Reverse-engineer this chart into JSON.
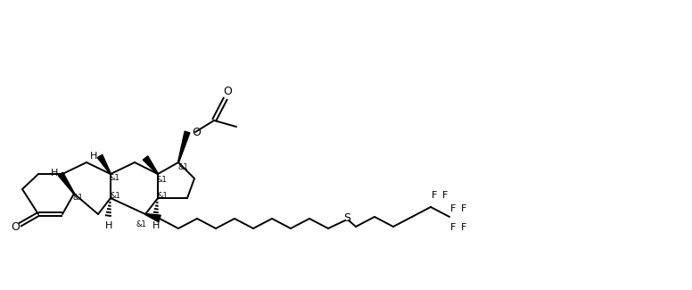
{
  "bg_color": "#ffffff",
  "line_color": "#000000",
  "figsize": [
    7.76,
    3.25
  ],
  "dpi": 100,
  "bond_lw": 1.4,
  "stereo_labels": [
    "&1",
    "&1",
    "&1",
    "&1",
    "&1",
    "&1",
    "&1"
  ],
  "F_labels": [
    "F",
    "F",
    "F",
    "F",
    "F"
  ],
  "S_label": "S",
  "O_label": "O",
  "H_label": "H"
}
